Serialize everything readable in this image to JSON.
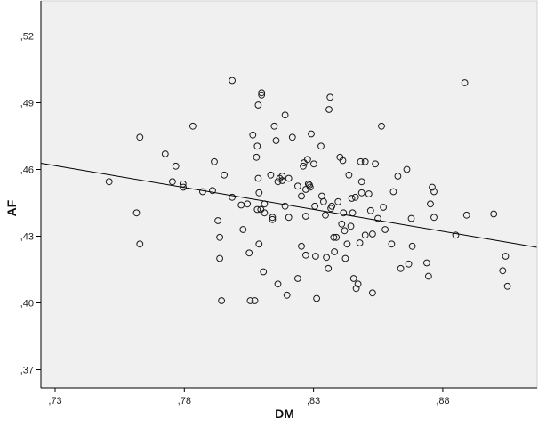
{
  "chart_data": {
    "type": "scatter",
    "xlabel": "DM",
    "ylabel": "AF",
    "xlim": [
      0.7245,
      0.9165
    ],
    "ylim": [
      0.3618,
      0.5358
    ],
    "x_ticks": [
      0.73,
      0.78,
      0.83,
      0.88
    ],
    "x_tick_labels": [
      ",73",
      ",78",
      ",83",
      ",88"
    ],
    "y_ticks": [
      0.37,
      0.4,
      0.43,
      0.46,
      0.49,
      0.52
    ],
    "y_tick_labels": [
      ",37",
      ",40",
      ",43",
      ",46",
      ",49",
      ",52"
    ],
    "grid": false,
    "colors": {
      "plot_background": "#f0f0f0",
      "marker_edge": "#1a1a1a",
      "line": "#000000"
    },
    "fit_line": {
      "x": [
        0.7245,
        0.9165
      ],
      "y": [
        0.4628,
        0.425
      ]
    },
    "points": [
      [
        0.7509,
        0.4545
      ],
      [
        0.7615,
        0.4405
      ],
      [
        0.7628,
        0.4265
      ],
      [
        0.7628,
        0.4745
      ],
      [
        0.7726,
        0.467
      ],
      [
        0.7754,
        0.4545
      ],
      [
        0.7767,
        0.4615
      ],
      [
        0.7795,
        0.4535
      ],
      [
        0.7833,
        0.4795
      ],
      [
        0.7871,
        0.45
      ],
      [
        0.7909,
        0.4505
      ],
      [
        0.793,
        0.437
      ],
      [
        0.7937,
        0.4295
      ],
      [
        0.7937,
        0.42
      ],
      [
        0.7944,
        0.401
      ],
      [
        0.7954,
        0.4575
      ],
      [
        0.7985,
        0.4475
      ],
      [
        0.7985,
        0.5
      ],
      [
        0.802,
        0.444
      ],
      [
        0.8027,
        0.433
      ],
      [
        0.8044,
        0.4445
      ],
      [
        0.8051,
        0.4225
      ],
      [
        0.8055,
        0.401
      ],
      [
        0.8065,
        0.4755
      ],
      [
        0.8079,
        0.4655
      ],
      [
        0.8082,
        0.4705
      ],
      [
        0.8082,
        0.442
      ],
      [
        0.8086,
        0.489
      ],
      [
        0.8086,
        0.456
      ],
      [
        0.8089,
        0.4495
      ],
      [
        0.8089,
        0.4265
      ],
      [
        0.8096,
        0.442
      ],
      [
        0.8099,
        0.4935
      ],
      [
        0.8099,
        0.4945
      ],
      [
        0.8106,
        0.414
      ],
      [
        0.811,
        0.4405
      ],
      [
        0.8134,
        0.4575
      ],
      [
        0.8141,
        0.4375
      ],
      [
        0.8141,
        0.4385
      ],
      [
        0.8148,
        0.4795
      ],
      [
        0.8155,
        0.473
      ],
      [
        0.8162,
        0.4545
      ],
      [
        0.8162,
        0.4085
      ],
      [
        0.8169,
        0.456
      ],
      [
        0.8179,
        0.457
      ],
      [
        0.8179,
        0.455
      ],
      [
        0.819,
        0.4845
      ],
      [
        0.819,
        0.4435
      ],
      [
        0.8197,
        0.4035
      ],
      [
        0.8204,
        0.456
      ],
      [
        0.8204,
        0.4385
      ],
      [
        0.8218,
        0.4745
      ],
      [
        0.8239,
        0.411
      ],
      [
        0.8239,
        0.4525
      ],
      [
        0.8253,
        0.448
      ],
      [
        0.8253,
        0.4255
      ],
      [
        0.826,
        0.4615
      ],
      [
        0.8263,
        0.463
      ],
      [
        0.827,
        0.451
      ],
      [
        0.827,
        0.439
      ],
      [
        0.827,
        0.4215
      ],
      [
        0.8277,
        0.4645
      ],
      [
        0.828,
        0.4535
      ],
      [
        0.8284,
        0.453
      ],
      [
        0.8287,
        0.452
      ],
      [
        0.8291,
        0.476
      ],
      [
        0.8301,
        0.4625
      ],
      [
        0.8305,
        0.4435
      ],
      [
        0.8308,
        0.421
      ],
      [
        0.8312,
        0.402
      ],
      [
        0.8329,
        0.4705
      ],
      [
        0.8332,
        0.448
      ],
      [
        0.8339,
        0.4455
      ],
      [
        0.8346,
        0.4395
      ],
      [
        0.835,
        0.4205
      ],
      [
        0.8357,
        0.4155
      ],
      [
        0.836,
        0.487
      ],
      [
        0.8364,
        0.4925
      ],
      [
        0.8367,
        0.4425
      ],
      [
        0.8371,
        0.4435
      ],
      [
        0.8378,
        0.4295
      ],
      [
        0.8381,
        0.423
      ],
      [
        0.8388,
        0.4295
      ],
      [
        0.8395,
        0.4455
      ],
      [
        0.8402,
        0.4655
      ],
      [
        0.8409,
        0.4355
      ],
      [
        0.8413,
        0.464
      ],
      [
        0.8416,
        0.4405
      ],
      [
        0.842,
        0.4325
      ],
      [
        0.8423,
        0.42
      ],
      [
        0.843,
        0.4265
      ],
      [
        0.8437,
        0.4575
      ],
      [
        0.8444,
        0.4345
      ],
      [
        0.8448,
        0.447
      ],
      [
        0.8451,
        0.4405
      ],
      [
        0.8455,
        0.411
      ],
      [
        0.8462,
        0.4475
      ],
      [
        0.8465,
        0.4065
      ],
      [
        0.8472,
        0.4085
      ],
      [
        0.8479,
        0.427
      ],
      [
        0.8482,
        0.4635
      ],
      [
        0.8486,
        0.4545
      ],
      [
        0.8486,
        0.4495
      ],
      [
        0.85,
        0.4635
      ],
      [
        0.85,
        0.4305
      ],
      [
        0.8514,
        0.449
      ],
      [
        0.8521,
        0.4415
      ],
      [
        0.8528,
        0.431
      ],
      [
        0.8528,
        0.4045
      ],
      [
        0.8539,
        0.4625
      ],
      [
        0.8549,
        0.438
      ],
      [
        0.8563,
        0.4795
      ],
      [
        0.857,
        0.443
      ],
      [
        0.8577,
        0.433
      ],
      [
        0.8602,
        0.4265
      ],
      [
        0.8609,
        0.45
      ],
      [
        0.8626,
        0.457
      ],
      [
        0.8637,
        0.4155
      ],
      [
        0.8661,
        0.46
      ],
      [
        0.8668,
        0.4175
      ],
      [
        0.8678,
        0.438
      ],
      [
        0.8682,
        0.4255
      ],
      [
        0.8738,
        0.418
      ],
      [
        0.8745,
        0.412
      ],
      [
        0.8752,
        0.4445
      ],
      [
        0.8759,
        0.452
      ],
      [
        0.8766,
        0.45
      ],
      [
        0.8766,
        0.4385
      ],
      [
        0.885,
        0.4305
      ],
      [
        0.8885,
        0.499
      ],
      [
        0.8892,
        0.4395
      ],
      [
        0.8997,
        0.44
      ],
      [
        0.9032,
        0.4145
      ],
      [
        0.9043,
        0.421
      ],
      [
        0.905,
        0.4075
      ],
      [
        0.8073,
        0.401
      ],
      [
        0.811,
        0.4445
      ],
      [
        0.7796,
        0.452
      ],
      [
        0.7916,
        0.4635
      ]
    ]
  }
}
